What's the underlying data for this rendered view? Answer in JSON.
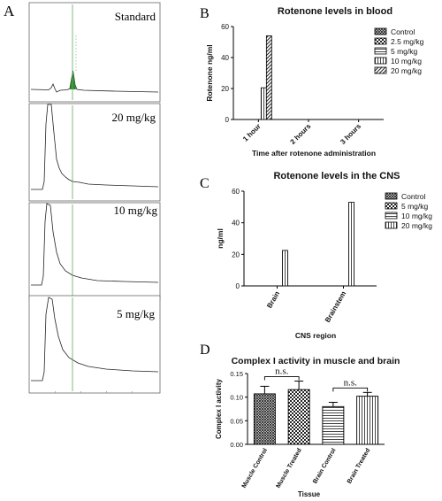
{
  "panels": {
    "A": {
      "letter": "A",
      "traces": [
        {
          "label": "Standard"
        },
        {
          "label": "20 mg/kg"
        },
        {
          "label": "10 mg/kg"
        },
        {
          "label": "5 mg/kg"
        }
      ]
    },
    "B": {
      "letter": "B"
    },
    "C": {
      "letter": "C"
    },
    "D": {
      "letter": "D"
    }
  },
  "chart_data": [
    {
      "panel": "B",
      "type": "bar",
      "title": "Rotenone levels in blood",
      "xlabel": "Time after rotenone administration",
      "ylabel": "Rotenone ng/ml",
      "categories": [
        "1 hour",
        "2 hours",
        "3 hours"
      ],
      "ylim": [
        0,
        60
      ],
      "yticks": [
        0,
        20,
        40,
        60
      ],
      "legend_position": "right",
      "series": [
        {
          "name": "Control",
          "pattern": "dense-cross",
          "values": [
            0,
            0,
            0
          ]
        },
        {
          "name": "2.5 mg/kg",
          "pattern": "checker",
          "values": [
            0,
            0,
            0
          ]
        },
        {
          "name": "5 mg/kg",
          "pattern": "hlines",
          "values": [
            0,
            0,
            0
          ]
        },
        {
          "name": "10 mg/kg",
          "pattern": "vlines",
          "values": [
            20.5,
            0,
            0
          ]
        },
        {
          "name": "20 mg/kg",
          "pattern": "diagonal",
          "values": [
            54,
            0,
            0
          ]
        }
      ]
    },
    {
      "panel": "C",
      "type": "bar",
      "title": "Rotenone levels in the CNS",
      "xlabel": "CNS region",
      "ylabel": "ng/ml",
      "categories": [
        "Brain",
        "Brainstem"
      ],
      "ylim": [
        0,
        60
      ],
      "yticks": [
        0,
        20,
        40,
        60
      ],
      "legend_position": "right",
      "series": [
        {
          "name": "Control",
          "pattern": "dense-cross",
          "values": [
            0,
            0
          ]
        },
        {
          "name": "5 mg/kg",
          "pattern": "checker",
          "values": [
            0,
            0
          ]
        },
        {
          "name": "10 mg/kg",
          "pattern": "hlines",
          "values": [
            0,
            0
          ]
        },
        {
          "name": "20 mg/kg",
          "pattern": "vlines",
          "values": [
            22.5,
            53
          ]
        }
      ]
    },
    {
      "panel": "D",
      "type": "bar",
      "title": "Complex I activity in muscle and brain",
      "xlabel": "Tissue",
      "ylabel": "Complex I activity",
      "categories": [
        "Muscle Control",
        "Muscle Treated",
        "Brain Control",
        "Brain Treated"
      ],
      "values": [
        0.107,
        0.116,
        0.08,
        0.102
      ],
      "errors": [
        0.016,
        0.018,
        0.009,
        0.008
      ],
      "patterns": [
        "dense-cross",
        "checker",
        "hlines",
        "vlines"
      ],
      "ylim": [
        0,
        0.15
      ],
      "yticks": [
        "0.00",
        "0.05",
        "0.10",
        "0.15"
      ],
      "yticks_values": [
        0,
        0.05,
        0.1,
        0.15
      ],
      "annotations": [
        {
          "text": "n.s.",
          "between": [
            0,
            1
          ]
        },
        {
          "text": "n.s.",
          "between": [
            2,
            3
          ]
        }
      ]
    }
  ]
}
